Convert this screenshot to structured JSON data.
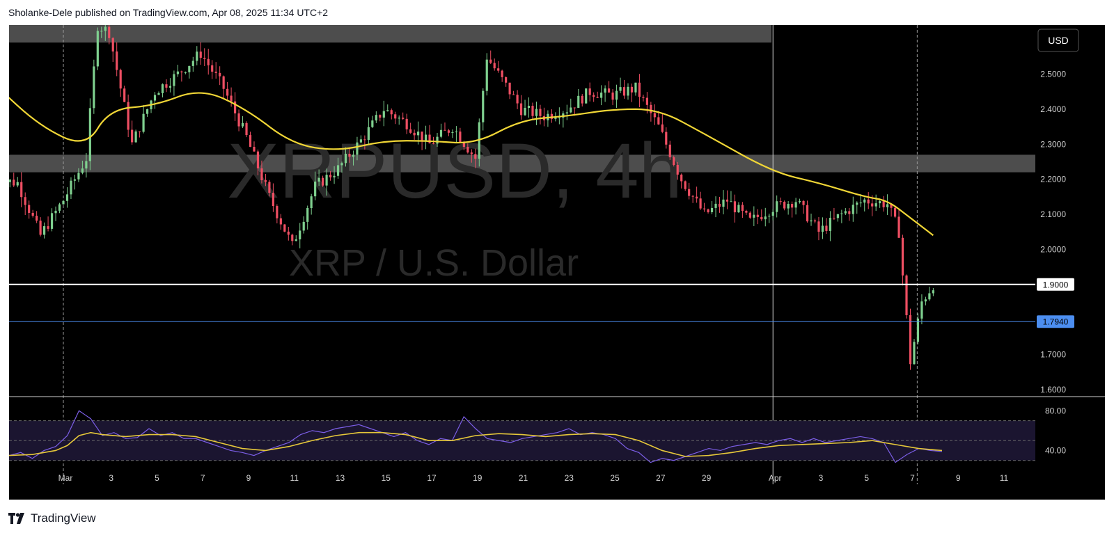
{
  "header": {
    "text": "Sholanke-Dele published on TradingView.com, Apr 08, 2025 11:34 UTC+2"
  },
  "footer": {
    "brand": "TradingView"
  },
  "chart": {
    "symbol": "XRPUSD, 4h",
    "description": "XRP / U.S. Dollar",
    "currency_button": "USD",
    "colors": {
      "background": "#000000",
      "up": "#7fd08f",
      "down": "#ef4f63",
      "ma": "#f0d636",
      "rsi": "#7b5ee6",
      "rsi_ma": "#e6c83a",
      "h_line_white": "#ffffff",
      "h_line_blue": "#4c8ef0"
    }
  },
  "chart_data": [
    {
      "type": "candlestick",
      "title": "XRPUSD, 4h",
      "subtitle": "XRP / U.S. Dollar",
      "y_ticks": [
        "2.5000",
        "2.4000",
        "2.3000",
        "2.2000",
        "2.1000",
        "2.0000",
        "1.7000",
        "1.6000"
      ],
      "x_ticks": [
        "Mar",
        "3",
        "5",
        "7",
        "9",
        "11",
        "13",
        "15",
        "17",
        "19",
        "21",
        "23",
        "25",
        "27",
        "29",
        "Apr",
        "3",
        "5",
        "7",
        "9",
        "11"
      ],
      "ylim": [
        1.58,
        2.64
      ],
      "resistance_zones": [
        [
          2.59,
          2.64
        ],
        [
          2.22,
          2.27
        ]
      ],
      "price_labels": [
        {
          "label": "1.9000",
          "value": 1.9,
          "style": "white"
        },
        {
          "label": "1.7940",
          "value": 1.794,
          "style": "blue"
        }
      ],
      "close_path": [
        [
          "Feb 26",
          2.2
        ],
        [
          "Feb 27",
          2.19
        ],
        [
          "Feb 28",
          2.04
        ],
        [
          "Mar 1",
          2.14
        ],
        [
          "Mar 2",
          2.26
        ],
        [
          "Mar 2 PM",
          2.64
        ],
        [
          "Mar 3",
          2.62
        ],
        [
          "Mar 4",
          2.3
        ],
        [
          "Mar 5",
          2.45
        ],
        [
          "Mar 6",
          2.5
        ],
        [
          "Mar 7",
          2.56
        ],
        [
          "Mar 8",
          2.46
        ],
        [
          "Mar 9",
          2.32
        ],
        [
          "Mar 10",
          2.15
        ],
        [
          "Mar 11",
          2.01
        ],
        [
          "Mar 12",
          2.18
        ],
        [
          "Mar 13",
          2.23
        ],
        [
          "Mar 14",
          2.31
        ],
        [
          "Mar 15",
          2.4
        ],
        [
          "Mar 16",
          2.36
        ],
        [
          "Mar 17",
          2.3
        ],
        [
          "Mar 18",
          2.35
        ],
        [
          "Mar 19",
          2.26
        ],
        [
          "Mar 19 PM",
          2.55
        ],
        [
          "Mar 20",
          2.5
        ],
        [
          "Mar 21",
          2.4
        ],
        [
          "Mar 22",
          2.38
        ],
        [
          "Mar 23",
          2.4
        ],
        [
          "Mar 24",
          2.45
        ],
        [
          "Mar 25",
          2.44
        ],
        [
          "Mar 26",
          2.46
        ],
        [
          "Mar 27",
          2.35
        ],
        [
          "Mar 28",
          2.2
        ],
        [
          "Mar 29",
          2.1
        ],
        [
          "Mar 30",
          2.14
        ],
        [
          "Mar 31",
          2.08
        ],
        [
          "Apr 1",
          2.12
        ],
        [
          "Apr 2",
          2.14
        ],
        [
          "Apr 3",
          2.05
        ],
        [
          "Apr 4",
          2.1
        ],
        [
          "Apr 5",
          2.14
        ],
        [
          "Apr 6",
          2.13
        ],
        [
          "Apr 6 PM",
          2.05
        ],
        [
          "Apr 7",
          1.68
        ],
        [
          "Apr 7 PM",
          1.85
        ],
        [
          "Apr 8",
          1.9
        ]
      ],
      "moving_average": [
        [
          "Feb 26",
          2.47
        ],
        [
          "Feb 28",
          2.35
        ],
        [
          "Mar 2",
          2.29
        ],
        [
          "Mar 3",
          2.4
        ],
        [
          "Mar 5",
          2.41
        ],
        [
          "Mar 7",
          2.46
        ],
        [
          "Mar 9",
          2.4
        ],
        [
          "Mar 11",
          2.3
        ],
        [
          "Mar 13",
          2.28
        ],
        [
          "Mar 15",
          2.31
        ],
        [
          "Mar 17",
          2.31
        ],
        [
          "Mar 19",
          2.3
        ],
        [
          "Mar 21",
          2.37
        ],
        [
          "Mar 23",
          2.38
        ],
        [
          "Mar 25",
          2.4
        ],
        [
          "Mar 27",
          2.4
        ],
        [
          "Mar 29",
          2.33
        ],
        [
          "Apr 1",
          2.22
        ],
        [
          "Apr 3",
          2.19
        ],
        [
          "Apr 5",
          2.15
        ],
        [
          "Apr 6",
          2.14
        ],
        [
          "Apr 7",
          2.09
        ],
        [
          "Apr 8",
          2.04
        ]
      ]
    },
    {
      "type": "line",
      "title": "",
      "y_ticks": [
        "80.00",
        "40.00"
      ],
      "ylim": [
        20,
        90
      ],
      "bands": [
        70,
        30
      ],
      "midline": 50,
      "series": [
        {
          "values": [
            [
              0,
              35
            ],
            [
              0.5,
              38
            ],
            [
              1,
              32
            ],
            [
              1.5,
              40
            ],
            [
              2,
              44
            ],
            [
              2.5,
              55
            ],
            [
              3,
              80
            ],
            [
              3.5,
              72
            ],
            [
              4,
              55
            ],
            [
              4.5,
              58
            ],
            [
              5,
              52
            ],
            [
              5.5,
              53
            ],
            [
              6,
              62
            ],
            [
              6.5,
              55
            ],
            [
              7,
              58
            ],
            [
              7.5,
              52
            ],
            [
              8,
              52
            ],
            [
              8.5,
              48
            ],
            [
              9,
              44
            ],
            [
              9.5,
              40
            ],
            [
              10,
              38
            ],
            [
              10.5,
              35
            ],
            [
              11,
              40
            ],
            [
              11.5,
              44
            ],
            [
              12,
              48
            ],
            [
              12.5,
              56
            ],
            [
              13,
              60
            ],
            [
              13.5,
              58
            ],
            [
              14,
              62
            ],
            [
              14.5,
              64
            ],
            [
              15,
              66
            ],
            [
              15.5,
              62
            ],
            [
              16,
              58
            ],
            [
              16.5,
              54
            ],
            [
              17,
              58
            ],
            [
              17.5,
              50
            ],
            [
              18,
              46
            ],
            [
              18.5,
              52
            ],
            [
              19,
              50
            ],
            [
              19.5,
              74
            ],
            [
              20,
              62
            ],
            [
              20.5,
              52
            ],
            [
              21,
              50
            ],
            [
              21.5,
              48
            ],
            [
              22,
              52
            ],
            [
              22.5,
              54
            ],
            [
              23,
              56
            ],
            [
              23.5,
              58
            ],
            [
              24,
              62
            ],
            [
              24.5,
              56
            ],
            [
              25,
              58
            ],
            [
              25.5,
              56
            ],
            [
              26,
              52
            ],
            [
              26.5,
              42
            ],
            [
              27,
              38
            ],
            [
              27.5,
              28
            ],
            [
              28,
              32
            ],
            [
              28.5,
              30
            ],
            [
              29,
              34
            ],
            [
              29.5,
              38
            ],
            [
              30,
              42
            ],
            [
              30.5,
              40
            ],
            [
              31,
              44
            ],
            [
              31.5,
              46
            ],
            [
              32,
              48
            ],
            [
              32.5,
              46
            ],
            [
              33,
              50
            ],
            [
              33.5,
              52
            ],
            [
              34,
              48
            ],
            [
              34.5,
              52
            ],
            [
              35,
              48
            ],
            [
              35.5,
              50
            ],
            [
              36,
              52
            ],
            [
              36.5,
              54
            ],
            [
              37,
              52
            ],
            [
              37.5,
              48
            ],
            [
              38,
              28
            ],
            [
              38.5,
              36
            ],
            [
              39,
              42
            ],
            [
              39.5,
              40
            ],
            [
              40,
              39
            ]
          ]
        },
        {
          "values": [
            [
              0,
              35
            ],
            [
              1,
              36
            ],
            [
              2,
              40
            ],
            [
              2.5,
              45
            ],
            [
              3,
              55
            ],
            [
              3.5,
              58
            ],
            [
              4,
              56
            ],
            [
              5,
              54
            ],
            [
              6,
              56
            ],
            [
              7,
              56
            ],
            [
              8,
              54
            ],
            [
              9,
              48
            ],
            [
              10,
              42
            ],
            [
              11,
              40
            ],
            [
              12,
              44
            ],
            [
              13,
              50
            ],
            [
              14,
              55
            ],
            [
              15,
              58
            ],
            [
              16,
              58
            ],
            [
              17,
              56
            ],
            [
              18,
              50
            ],
            [
              19,
              50
            ],
            [
              20,
              55
            ],
            [
              21,
              57
            ],
            [
              22,
              56
            ],
            [
              23,
              54
            ],
            [
              24,
              56
            ],
            [
              25,
              57
            ],
            [
              26,
              56
            ],
            [
              27,
              50
            ],
            [
              28,
              40
            ],
            [
              29,
              34
            ],
            [
              30,
              35
            ],
            [
              31,
              38
            ],
            [
              32,
              42
            ],
            [
              33,
              45
            ],
            [
              34,
              46
            ],
            [
              35,
              47
            ],
            [
              36,
              48
            ],
            [
              37,
              50
            ],
            [
              38,
              46
            ],
            [
              39,
              42
            ],
            [
              40,
              40
            ]
          ]
        }
      ]
    }
  ]
}
